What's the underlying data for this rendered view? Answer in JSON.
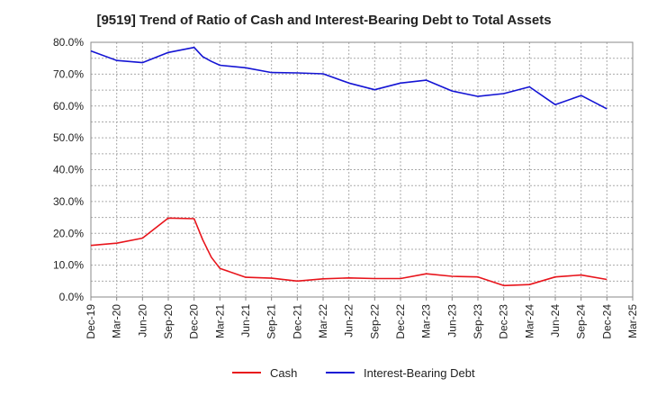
{
  "chart_data": {
    "type": "line",
    "title": "[9519]  Trend of Ratio of Cash and Interest-Bearing Debt to Total Assets",
    "xlabel": "",
    "ylabel": "",
    "ylim": [
      0,
      80
    ],
    "yticks": [
      "0.0%",
      "10.0%",
      "20.0%",
      "30.0%",
      "40.0%",
      "50.0%",
      "60.0%",
      "70.0%",
      "80.0%"
    ],
    "xticks": [
      "Dec-19",
      "Mar-20",
      "Jun-20",
      "Sep-20",
      "Dec-20",
      "Mar-21",
      "Jun-21",
      "Sep-21",
      "Dec-21",
      "Mar-22",
      "Jun-22",
      "Sep-22",
      "Dec-22",
      "Mar-23",
      "Jun-23",
      "Sep-23",
      "Dec-23",
      "Mar-24",
      "Jun-24",
      "Sep-24",
      "Dec-24",
      "Mar-25"
    ],
    "grid": true,
    "legend_position": "bottom",
    "series": [
      {
        "name": "Cash",
        "color": "#e8141b",
        "x": [
          "Dec-19",
          "Mar-20",
          "Jun-20",
          "Sep-20",
          "Dec-20",
          "Jan-21",
          "Feb-21",
          "Mar-21",
          "Jun-21",
          "Sep-21",
          "Dec-21",
          "Mar-22",
          "Jun-22",
          "Sep-22",
          "Dec-22",
          "Mar-23",
          "Jun-23",
          "Sep-23",
          "Dec-23",
          "Mar-24",
          "Jun-24",
          "Sep-24",
          "Dec-24"
        ],
        "values": [
          16.2,
          16.9,
          18.5,
          24.8,
          24.6,
          18.0,
          12.5,
          9.0,
          6.2,
          5.9,
          5.0,
          5.7,
          6.0,
          5.8,
          5.8,
          7.3,
          6.5,
          6.3,
          3.6,
          3.9,
          6.3,
          6.9,
          5.5
        ]
      },
      {
        "name": "Interest-Bearing Debt",
        "color": "#1414d4",
        "x": [
          "Dec-19",
          "Mar-20",
          "Jun-20",
          "Sep-20",
          "Dec-20",
          "Jan-21",
          "Feb-21",
          "Mar-21",
          "Jun-21",
          "Sep-21",
          "Dec-21",
          "Mar-22",
          "Jun-22",
          "Sep-22",
          "Dec-22",
          "Mar-23",
          "Jun-23",
          "Sep-23",
          "Dec-23",
          "Mar-24",
          "Jun-24",
          "Sep-24",
          "Dec-24"
        ],
        "values": [
          77.3,
          74.3,
          73.6,
          76.8,
          78.4,
          75.5,
          74.0,
          72.8,
          72.0,
          70.5,
          70.4,
          70.1,
          67.2,
          65.1,
          67.2,
          68.1,
          64.7,
          63.0,
          63.9,
          66.0,
          60.4,
          63.3,
          59.1
        ]
      }
    ]
  }
}
